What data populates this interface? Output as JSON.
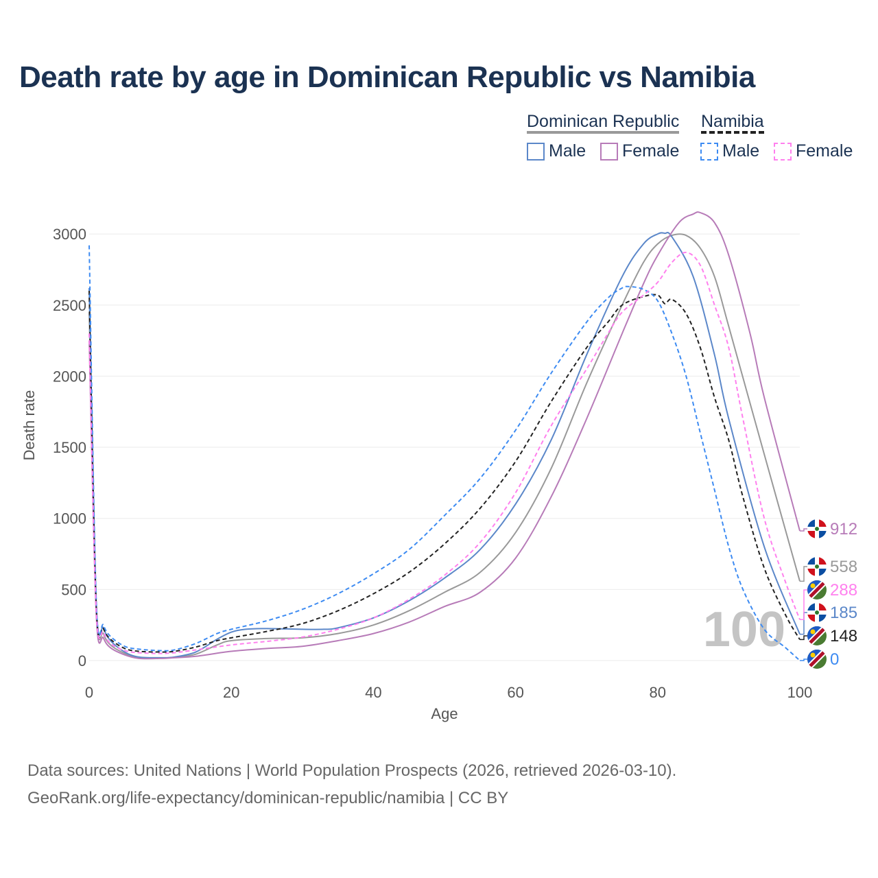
{
  "title": "Death rate by age in Dominican Republic vs Namibia",
  "legend": {
    "group1": "Dominican Republic",
    "group2": "Namibia",
    "male": "Male",
    "female": "Female"
  },
  "footer": {
    "line1": "Data sources: United Nations | World Population Prospects (2026, retrieved 2026-03-10).",
    "line2": "GeoRank.org/life-expectancy/dominican-republic/namibia | CC BY"
  },
  "watermark": "100",
  "chart_data": {
    "type": "line",
    "xlabel": "Age",
    "ylabel": "Death rate",
    "xlim": [
      0,
      100
    ],
    "ylim": [
      0,
      3200
    ],
    "xticks": [
      0,
      20,
      40,
      60,
      80,
      100
    ],
    "yticks": [
      0,
      500,
      1000,
      1500,
      2000,
      2500,
      3000
    ],
    "grid": true,
    "legend": "top-right",
    "series": [
      {
        "name": "Dominican Republic Total",
        "color": "#999999",
        "dash": false,
        "end_label": "558",
        "flag": "dr",
        "points": [
          [
            0,
            2450
          ],
          [
            1,
            360
          ],
          [
            2,
            190
          ],
          [
            3,
            110
          ],
          [
            5,
            50
          ],
          [
            7,
            20
          ],
          [
            10,
            18
          ],
          [
            12,
            22
          ],
          [
            15,
            45
          ],
          [
            18,
            110
          ],
          [
            20,
            140
          ],
          [
            25,
            155
          ],
          [
            30,
            160
          ],
          [
            35,
            190
          ],
          [
            40,
            250
          ],
          [
            45,
            350
          ],
          [
            50,
            480
          ],
          [
            55,
            620
          ],
          [
            60,
            900
          ],
          [
            65,
            1350
          ],
          [
            70,
            1950
          ],
          [
            75,
            2500
          ],
          [
            78,
            2800
          ],
          [
            80,
            2930
          ],
          [
            82,
            2990
          ],
          [
            84,
            2990
          ],
          [
            86,
            2900
          ],
          [
            88,
            2700
          ],
          [
            90,
            2350
          ],
          [
            95,
            1450
          ],
          [
            100,
            558
          ]
        ]
      },
      {
        "name": "Dominican Republic Male",
        "color": "#5b87c9",
        "dash": false,
        "end_label": "185",
        "flag": "dr",
        "points": [
          [
            0,
            2620
          ],
          [
            1,
            400
          ],
          [
            2,
            230
          ],
          [
            3,
            140
          ],
          [
            5,
            60
          ],
          [
            7,
            25
          ],
          [
            10,
            20
          ],
          [
            12,
            25
          ],
          [
            15,
            60
          ],
          [
            18,
            150
          ],
          [
            20,
            200
          ],
          [
            22,
            220
          ],
          [
            25,
            225
          ],
          [
            30,
            220
          ],
          [
            33,
            220
          ],
          [
            35,
            230
          ],
          [
            40,
            300
          ],
          [
            45,
            420
          ],
          [
            50,
            580
          ],
          [
            55,
            780
          ],
          [
            60,
            1100
          ],
          [
            65,
            1550
          ],
          [
            70,
            2150
          ],
          [
            75,
            2700
          ],
          [
            78,
            2930
          ],
          [
            80,
            3000
          ],
          [
            81,
            3005
          ],
          [
            82,
            2980
          ],
          [
            85,
            2700
          ],
          [
            88,
            2150
          ],
          [
            90,
            1700
          ],
          [
            95,
            800
          ],
          [
            100,
            185
          ]
        ]
      },
      {
        "name": "Dominican Republic Female",
        "color": "#b77bb8",
        "dash": false,
        "end_label": "912",
        "flag": "dr",
        "points": [
          [
            0,
            2250
          ],
          [
            1,
            320
          ],
          [
            2,
            160
          ],
          [
            3,
            90
          ],
          [
            5,
            40
          ],
          [
            7,
            15
          ],
          [
            10,
            15
          ],
          [
            12,
            20
          ],
          [
            15,
            30
          ],
          [
            20,
            65
          ],
          [
            25,
            85
          ],
          [
            30,
            100
          ],
          [
            35,
            140
          ],
          [
            40,
            190
          ],
          [
            45,
            270
          ],
          [
            50,
            380
          ],
          [
            55,
            480
          ],
          [
            60,
            720
          ],
          [
            65,
            1150
          ],
          [
            70,
            1700
          ],
          [
            75,
            2300
          ],
          [
            78,
            2650
          ],
          [
            80,
            2850
          ],
          [
            83,
            3080
          ],
          [
            85,
            3140
          ],
          [
            86,
            3150
          ],
          [
            88,
            3080
          ],
          [
            90,
            2850
          ],
          [
            93,
            2300
          ],
          [
            95,
            1850
          ],
          [
            100,
            912
          ]
        ]
      },
      {
        "name": "Namibia Total",
        "color": "#222222",
        "dash": true,
        "end_label": "148",
        "flag": "na",
        "points": [
          [
            0,
            2600
          ],
          [
            1,
            380
          ],
          [
            2,
            225
          ],
          [
            3,
            150
          ],
          [
            5,
            85
          ],
          [
            7,
            65
          ],
          [
            10,
            60
          ],
          [
            12,
            65
          ],
          [
            15,
            95
          ],
          [
            18,
            140
          ],
          [
            20,
            160
          ],
          [
            25,
            205
          ],
          [
            30,
            260
          ],
          [
            35,
            350
          ],
          [
            40,
            470
          ],
          [
            45,
            620
          ],
          [
            50,
            820
          ],
          [
            55,
            1070
          ],
          [
            60,
            1400
          ],
          [
            65,
            1820
          ],
          [
            70,
            2200
          ],
          [
            73,
            2380
          ],
          [
            75,
            2500
          ],
          [
            78,
            2560
          ],
          [
            80,
            2570
          ],
          [
            81,
            2510
          ],
          [
            82,
            2540
          ],
          [
            84,
            2440
          ],
          [
            86,
            2200
          ],
          [
            88,
            1850
          ],
          [
            90,
            1550
          ],
          [
            92,
            1150
          ],
          [
            95,
            650
          ],
          [
            98,
            320
          ],
          [
            100,
            148
          ]
        ]
      },
      {
        "name": "Namibia Male",
        "color": "#3d8bf2",
        "dash": true,
        "end_label": "0",
        "flag": "na",
        "points": [
          [
            0,
            2920
          ],
          [
            1,
            420
          ],
          [
            2,
            250
          ],
          [
            3,
            170
          ],
          [
            5,
            100
          ],
          [
            7,
            80
          ],
          [
            10,
            70
          ],
          [
            12,
            75
          ],
          [
            15,
            120
          ],
          [
            18,
            190
          ],
          [
            20,
            220
          ],
          [
            25,
            280
          ],
          [
            30,
            360
          ],
          [
            35,
            470
          ],
          [
            40,
            610
          ],
          [
            45,
            780
          ],
          [
            50,
            1020
          ],
          [
            55,
            1280
          ],
          [
            60,
            1620
          ],
          [
            65,
            2020
          ],
          [
            70,
            2380
          ],
          [
            73,
            2550
          ],
          [
            75,
            2620
          ],
          [
            76,
            2630
          ],
          [
            78,
            2610
          ],
          [
            80,
            2530
          ],
          [
            82,
            2300
          ],
          [
            84,
            2000
          ],
          [
            86,
            1600
          ],
          [
            88,
            1200
          ],
          [
            90,
            800
          ],
          [
            92,
            500
          ],
          [
            95,
            220
          ],
          [
            98,
            90
          ],
          [
            100,
            0
          ]
        ]
      },
      {
        "name": "Namibia Female",
        "color": "#ff80ee",
        "dash": true,
        "end_label": "288",
        "flag": "na",
        "points": [
          [
            0,
            2300
          ],
          [
            1,
            350
          ],
          [
            2,
            200
          ],
          [
            3,
            120
          ],
          [
            5,
            70
          ],
          [
            7,
            55
          ],
          [
            10,
            50
          ],
          [
            12,
            55
          ],
          [
            15,
            75
          ],
          [
            20,
            110
          ],
          [
            25,
            135
          ],
          [
            30,
            165
          ],
          [
            35,
            220
          ],
          [
            40,
            300
          ],
          [
            45,
            430
          ],
          [
            50,
            600
          ],
          [
            55,
            830
          ],
          [
            60,
            1180
          ],
          [
            65,
            1650
          ],
          [
            70,
            2050
          ],
          [
            73,
            2300
          ],
          [
            75,
            2450
          ],
          [
            78,
            2570
          ],
          [
            80,
            2660
          ],
          [
            82,
            2800
          ],
          [
            84,
            2870
          ],
          [
            86,
            2780
          ],
          [
            88,
            2500
          ],
          [
            90,
            2200
          ],
          [
            92,
            1700
          ],
          [
            95,
            1000
          ],
          [
            98,
            550
          ],
          [
            100,
            288
          ]
        ]
      }
    ]
  }
}
